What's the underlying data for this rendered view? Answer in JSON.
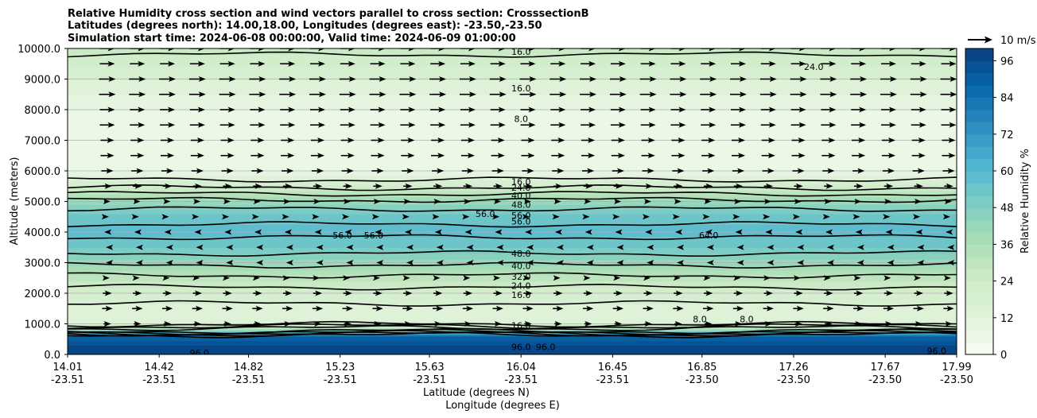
{
  "chart_data": {
    "type": "heatmap",
    "title_lines": [
      "Relative Humidity cross section and wind vectors parallel to cross section: CrosssectionB",
      "Latitudes (degrees north): 14.00,18.00, Longitudes (degrees east): -23.50,-23.50",
      "Simulation start time: 2024-06-08 00:00:00, Valid time: 2024-06-09 01:00:00"
    ],
    "ylabel": "Altitude (meters)",
    "xlabel_lat": "Latitude (degrees N)",
    "xlabel_lon": "Longitude (degrees E)",
    "ylim": [
      0,
      10000
    ],
    "yticks": [
      "0.0",
      "1000.0",
      "2000.0",
      "3000.0",
      "4000.0",
      "5000.0",
      "6000.0",
      "7000.0",
      "8000.0",
      "9000.0",
      "10000.0"
    ],
    "yticks_values": [
      0,
      1000,
      2000,
      3000,
      4000,
      5000,
      6000,
      7000,
      8000,
      9000,
      10000
    ],
    "xlim": [
      14.01,
      17.99
    ],
    "xticks_lat": [
      "14.01",
      "14.42",
      "14.82",
      "15.23",
      "15.63",
      "16.04",
      "16.45",
      "16.85",
      "17.26",
      "17.67",
      "17.99"
    ],
    "xticks_lon": [
      "-23.51",
      "-23.51",
      "-23.51",
      "-23.51",
      "-23.51",
      "-23.51",
      "-23.51",
      "-23.50",
      "-23.50",
      "-23.50",
      "-23.50"
    ],
    "xticks_values": [
      14.01,
      14.42,
      14.82,
      15.23,
      15.63,
      16.04,
      16.45,
      16.85,
      17.26,
      17.67,
      17.99
    ],
    "grid": "horizontal",
    "colorbar": {
      "label": "Relative Humidity %",
      "ticks": [
        "0",
        "12",
        "24",
        "36",
        "48",
        "60",
        "72",
        "84",
        "96"
      ],
      "ticks_values": [
        0,
        12,
        24,
        36,
        48,
        60,
        72,
        84,
        96
      ],
      "range": [
        0,
        100
      ],
      "cmap": "GnBu",
      "colors": [
        "#f7fcf0",
        "#e0f3db",
        "#ccebc5",
        "#a8ddb5",
        "#7bccc4",
        "#4eb3d3",
        "#2b8cbe",
        "#0868ac",
        "#084081"
      ]
    },
    "quiver_key": {
      "label": "10 m/s",
      "value": 10
    },
    "rh_profile": {
      "altitude": [
        0,
        300,
        600,
        800,
        1000,
        1500,
        2000,
        2500,
        3000,
        3500,
        4000,
        4500,
        5000,
        5500,
        6000,
        7000,
        8000,
        9000,
        10000
      ],
      "rh": [
        98,
        96,
        88,
        40,
        14,
        14,
        20,
        30,
        42,
        52,
        58,
        54,
        42,
        22,
        8,
        5,
        8,
        16,
        26
      ]
    },
    "contour_labels": [
      {
        "text": "16.0",
        "x": 16.04,
        "alt": 9900
      },
      {
        "text": "24.0",
        "x": 17.35,
        "alt": 9400
      },
      {
        "text": "16.0",
        "x": 16.04,
        "alt": 8700
      },
      {
        "text": "8.0",
        "x": 16.04,
        "alt": 7700
      },
      {
        "text": "16.0",
        "x": 16.04,
        "alt": 5650
      },
      {
        "text": "24.0",
        "x": 16.04,
        "alt": 5450
      },
      {
        "text": "40.0",
        "x": 16.04,
        "alt": 5200
      },
      {
        "text": "48.0",
        "x": 16.04,
        "alt": 4900
      },
      {
        "text": "56.0",
        "x": 16.04,
        "alt": 4550
      },
      {
        "text": "56.0",
        "x": 16.04,
        "alt": 4350
      },
      {
        "text": "56.0",
        "x": 15.88,
        "alt": 4600
      },
      {
        "text": "56.0",
        "x": 15.24,
        "alt": 3900
      },
      {
        "text": "56.0",
        "x": 15.38,
        "alt": 3900
      },
      {
        "text": "64.0",
        "x": 16.88,
        "alt": 3900
      },
      {
        "text": "48.0",
        "x": 16.04,
        "alt": 3300
      },
      {
        "text": "40.0",
        "x": 16.04,
        "alt": 2900
      },
      {
        "text": "32.0",
        "x": 16.04,
        "alt": 2550
      },
      {
        "text": "24.0",
        "x": 16.04,
        "alt": 2250
      },
      {
        "text": "16.0",
        "x": 16.04,
        "alt": 1950
      },
      {
        "text": "8.0",
        "x": 16.84,
        "alt": 1150
      },
      {
        "text": "8.0",
        "x": 17.05,
        "alt": 1150
      },
      {
        "text": "16.0",
        "x": 16.04,
        "alt": 950
      },
      {
        "text": "96.0",
        "x": 16.04,
        "alt": 250
      },
      {
        "text": "96.0",
        "x": 16.15,
        "alt": 250
      },
      {
        "text": "96.0",
        "x": 14.6,
        "alt": 50
      },
      {
        "text": "96.0",
        "x": 17.9,
        "alt": 120
      }
    ],
    "wind_rows": [
      {
        "alt": 10000,
        "u": 10
      },
      {
        "alt": 9500,
        "u": 10
      },
      {
        "alt": 9000,
        "u": 11
      },
      {
        "alt": 8500,
        "u": 11
      },
      {
        "alt": 8000,
        "u": 10
      },
      {
        "alt": 7500,
        "u": 10
      },
      {
        "alt": 7000,
        "u": 9
      },
      {
        "alt": 6500,
        "u": 9
      },
      {
        "alt": 6000,
        "u": 8
      },
      {
        "alt": 5500,
        "u": 6
      },
      {
        "alt": 5000,
        "u": 4
      },
      {
        "alt": 4500,
        "u": 2
      },
      {
        "alt": 4000,
        "u": -1
      },
      {
        "alt": 3500,
        "u": -2
      },
      {
        "alt": 3000,
        "u": -2
      },
      {
        "alt": 2500,
        "u": 3
      },
      {
        "alt": 2000,
        "u": 6
      },
      {
        "alt": 1500,
        "u": 7
      },
      {
        "alt": 1000,
        "u": 5
      }
    ]
  }
}
